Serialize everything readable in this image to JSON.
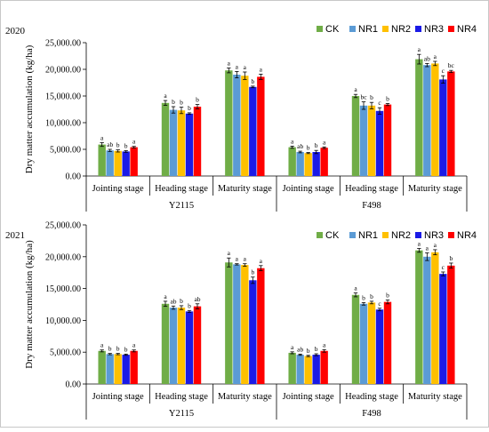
{
  "colors": {
    "CK": "#70ad47",
    "NR1": "#5b9bd5",
    "NR2": "#ffc000",
    "NR3": "#1a1ae6",
    "NR4": "#ff0000"
  },
  "chart_data": [
    {
      "type": "bar",
      "year_label": "2020",
      "ylabel": "Dry matter accumulation (kg/ha)",
      "ylim": [
        0,
        25000
      ],
      "yticks": [
        "0.00",
        "5,000.00",
        "10,000.00",
        "15,000.00",
        "20,000.00",
        "25,000.00"
      ],
      "tick_values": [
        0,
        5000,
        10000,
        15000,
        20000,
        25000
      ],
      "legend_position": "top-right",
      "groups": [
        "Y2115",
        "F498"
      ],
      "categories": [
        "Jointing stage",
        "Heading stage",
        "Maturity stage",
        "Jointing stage",
        "Heading stage",
        "Maturity stage"
      ],
      "series": [
        {
          "name": "CK",
          "values": [
            5900,
            13700,
            19800,
            5400,
            15000,
            21900
          ],
          "errors": [
            350,
            450,
            450,
            200,
            300,
            900
          ],
          "letters": [
            "a",
            "a",
            "a",
            "a",
            "a",
            "a"
          ]
        },
        {
          "name": "NR1",
          "values": [
            4800,
            12400,
            19000,
            4500,
            13200,
            20800
          ],
          "errors": [
            200,
            600,
            600,
            150,
            700,
            300
          ],
          "letters": [
            "ab",
            "b",
            "a",
            "ab",
            "bc",
            "ab"
          ]
        },
        {
          "name": "NR2",
          "values": [
            4700,
            12300,
            18800,
            4300,
            13200,
            21100
          ],
          "errors": [
            200,
            600,
            700,
            100,
            600,
            400
          ],
          "letters": [
            "b",
            "b",
            "a",
            "b",
            "b",
            "a"
          ]
        },
        {
          "name": "NR3",
          "values": [
            4600,
            11700,
            16700,
            4500,
            12200,
            18100
          ],
          "errors": [
            150,
            150,
            150,
            300,
            600,
            700
          ],
          "letters": [
            "b",
            "b",
            "b",
            "b",
            "c",
            "c"
          ]
        },
        {
          "name": "NR4",
          "values": [
            5400,
            13000,
            18600,
            5300,
            13400,
            19600
          ],
          "errors": [
            150,
            400,
            500,
            150,
            200,
            200
          ],
          "letters": [
            "a",
            "b",
            "a",
            "a",
            "b",
            "bc"
          ]
        }
      ]
    },
    {
      "type": "bar",
      "year_label": "2021",
      "ylabel": "Dry matter accumulation (kg/ha)",
      "ylim": [
        0,
        25000
      ],
      "yticks": [
        "0.00",
        "5,000.00",
        "10,000.00",
        "15,000.00",
        "20,000.00",
        "25,000.00"
      ],
      "tick_values": [
        0,
        5000,
        10000,
        15000,
        20000,
        25000
      ],
      "legend_position": "top-right",
      "groups": [
        "Y2115",
        "F498"
      ],
      "categories": [
        "Jointing stage",
        "Heading stage",
        "Maturity stage",
        "Jointing stage",
        "Heading stage",
        "Maturity stage"
      ],
      "series": [
        {
          "name": "CK",
          "values": [
            5200,
            12600,
            19100,
            4900,
            14000,
            21000
          ],
          "errors": [
            150,
            400,
            700,
            150,
            300,
            300
          ],
          "letters": [
            "a",
            "a",
            "a",
            "a",
            "a",
            "a"
          ]
        },
        {
          "name": "NR1",
          "values": [
            4700,
            12000,
            18800,
            4600,
            12600,
            20000
          ],
          "errors": [
            100,
            250,
            100,
            100,
            200,
            600
          ],
          "letters": [
            "b",
            "ab",
            "a",
            "ab",
            "b",
            "a"
          ]
        },
        {
          "name": "NR2",
          "values": [
            4700,
            12000,
            18700,
            4400,
            12800,
            20700
          ],
          "errors": [
            100,
            300,
            200,
            100,
            200,
            400
          ],
          "letters": [
            "b",
            "b",
            "a",
            "b",
            "b",
            "a"
          ]
        },
        {
          "name": "NR3",
          "values": [
            4600,
            11400,
            16300,
            4600,
            11700,
            17300
          ],
          "errors": [
            100,
            150,
            500,
            150,
            200,
            300
          ],
          "letters": [
            "b",
            "b",
            "b",
            "b",
            "c",
            "c"
          ]
        },
        {
          "name": "NR4",
          "values": [
            5200,
            12200,
            18200,
            5200,
            12900,
            18600
          ],
          "errors": [
            150,
            400,
            400,
            200,
            300,
            400
          ],
          "letters": [
            "a",
            "ab",
            "a",
            "a",
            "b",
            "b"
          ]
        }
      ]
    }
  ]
}
